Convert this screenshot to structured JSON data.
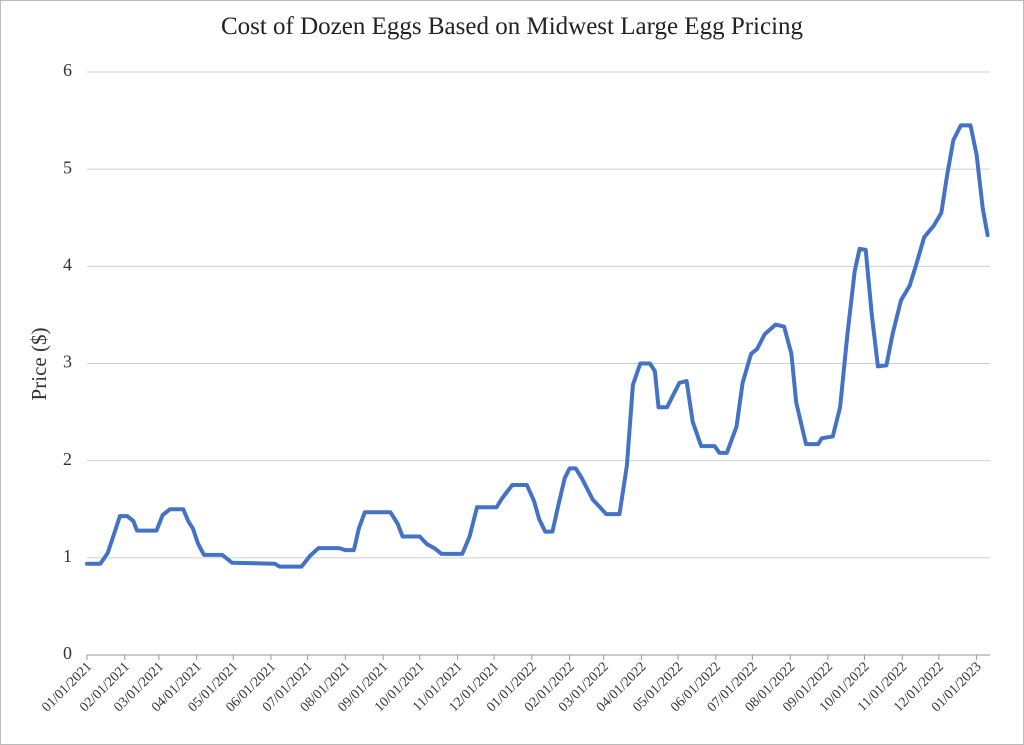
{
  "chart_data": {
    "type": "line",
    "title": "Cost of Dozen Eggs Based on Midwest Large Egg Pricing",
    "y_label": "Price ($)",
    "xlim": [
      "01/01/2021",
      "01/12/2023"
    ],
    "xticks": [
      "01/01/2021",
      "02/01/2021",
      "03/01/2021",
      "04/01/2021",
      "05/01/2021",
      "06/01/2021",
      "07/01/2021",
      "08/01/2021",
      "09/01/2021",
      "10/01/2021",
      "11/01/2021",
      "12/01/2021",
      "01/01/2022",
      "02/01/2022",
      "03/01/2022",
      "04/01/2022",
      "05/01/2022",
      "06/01/2022",
      "07/01/2022",
      "08/01/2022",
      "09/01/2022",
      "10/01/2022",
      "11/01/2022",
      "12/01/2022",
      "01/01/2023"
    ],
    "ylim": [
      0,
      6
    ],
    "yticks": [
      0,
      1,
      2,
      3,
      4,
      5,
      6
    ],
    "grid": true,
    "x": [
      "01/01/2021",
      "01/12/2021",
      "01/18/2021",
      "01/22/2021",
      "01/28/2021",
      "02/03/2021",
      "02/08/2021",
      "02/11/2021",
      "02/27/2021",
      "03/04/2021",
      "03/10/2021",
      "03/21/2021",
      "03/25/2021",
      "03/29/2021",
      "04/02/2021",
      "04/07/2021",
      "04/22/2021",
      "04/30/2021",
      "06/04/2021",
      "06/08/2021",
      "06/26/2021",
      "07/03/2021",
      "07/10/2021",
      "07/27/2021",
      "08/01/2021",
      "08/08/2021",
      "08/12/2021",
      "08/17/2021",
      "09/07/2021",
      "09/13/2021",
      "09/17/2021",
      "10/01/2021",
      "10/07/2021",
      "10/13/2021",
      "10/19/2021",
      "11/05/2021",
      "11/11/2021",
      "11/17/2021",
      "12/03/2021",
      "12/08/2021",
      "12/16/2021",
      "12/28/2021",
      "01/03/2022",
      "01/07/2022",
      "01/12/2022",
      "01/18/2022",
      "01/22/2022",
      "01/28/2022",
      "02/01/2022",
      "02/06/2022",
      "02/11/2022",
      "02/20/2022",
      "02/26/2022",
      "03/03/2022",
      "03/14/2022",
      "03/20/2022",
      "03/25/2022",
      "03/31/2022",
      "04/08/2022",
      "04/12/2022",
      "04/15/2022",
      "04/22/2022",
      "05/02/2022",
      "05/08/2022",
      "05/13/2022",
      "05/20/2022",
      "05/31/2022",
      "06/04/2022",
      "06/10/2022",
      "06/18/2022",
      "06/23/2022",
      "06/30/2022",
      "07/05/2022",
      "07/11/2022",
      "07/20/2022",
      "07/27/2022",
      "08/02/2022",
      "08/06/2022",
      "08/14/2022",
      "08/24/2022",
      "08/27/2022",
      "09/05/2022",
      "09/11/2022",
      "09/17/2022",
      "09/23/2022",
      "09/27/2022",
      "10/02/2022",
      "10/07/2022",
      "10/12/2022",
      "10/19/2022",
      "10/24/2022",
      "10/31/2022",
      "11/07/2022",
      "11/12/2022",
      "11/19/2022",
      "11/27/2022",
      "12/03/2022",
      "12/08/2022",
      "12/13/2022",
      "12/19/2022",
      "12/27/2022",
      "01/01/2023",
      "01/06/2023",
      "01/10/2023"
    ],
    "series": [
      {
        "name": "Price",
        "color": "#4472c4",
        "values": [
          0.94,
          0.94,
          1.05,
          1.2,
          1.43,
          1.43,
          1.38,
          1.28,
          1.28,
          1.44,
          1.5,
          1.5,
          1.38,
          1.3,
          1.15,
          1.03,
          1.03,
          0.95,
          0.94,
          0.91,
          0.91,
          1.02,
          1.1,
          1.1,
          1.08,
          1.08,
          1.3,
          1.47,
          1.47,
          1.35,
          1.22,
          1.22,
          1.14,
          1.1,
          1.04,
          1.04,
          1.22,
          1.52,
          1.52,
          1.62,
          1.75,
          1.75,
          1.58,
          1.4,
          1.27,
          1.27,
          1.5,
          1.82,
          1.92,
          1.92,
          1.82,
          1.6,
          1.52,
          1.45,
          1.45,
          1.95,
          2.78,
          3.0,
          3.0,
          2.92,
          2.55,
          2.55,
          2.8,
          2.82,
          2.4,
          2.15,
          2.15,
          2.08,
          2.08,
          2.35,
          2.8,
          3.1,
          3.15,
          3.3,
          3.4,
          3.38,
          3.1,
          2.6,
          2.17,
          2.17,
          2.23,
          2.25,
          2.55,
          3.3,
          3.95,
          4.18,
          4.17,
          3.5,
          2.97,
          2.98,
          3.3,
          3.65,
          3.8,
          4.0,
          4.3,
          4.42,
          4.55,
          4.95,
          5.3,
          5.45,
          5.45,
          5.15,
          4.6,
          4.32
        ]
      }
    ]
  }
}
